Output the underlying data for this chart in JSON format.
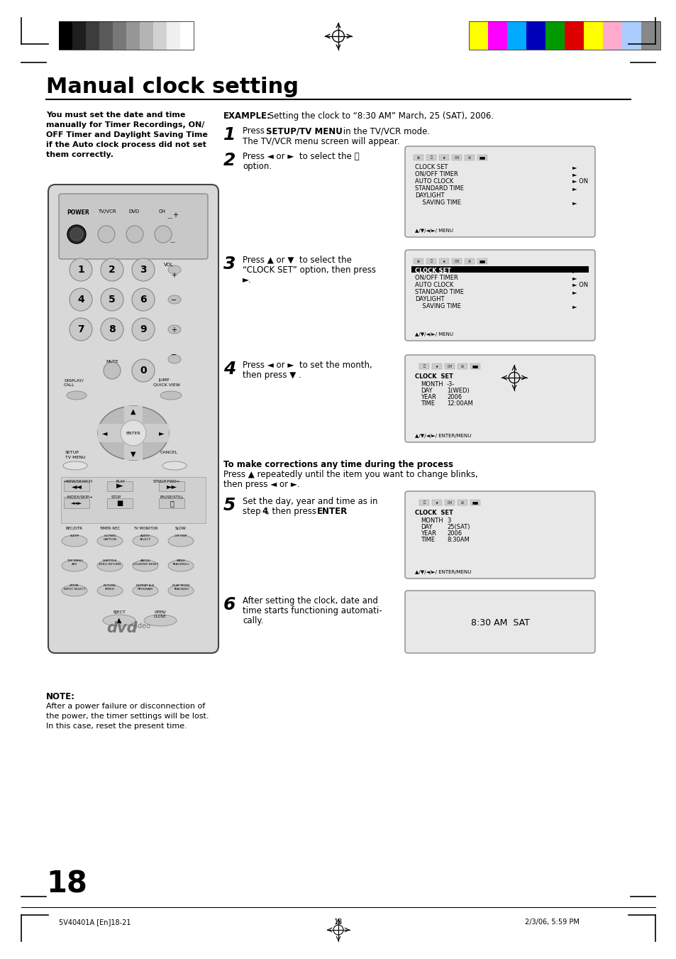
{
  "title": "Manual clock setting",
  "bg_color": "#ffffff",
  "left_col_text": [
    "You must set the date and time",
    "manually for Timer Recordings, ON/",
    "OFF Timer and Daylight Saving Time",
    "if the Auto clock process did not set",
    "them correctly."
  ],
  "note_title": "NOTE:",
  "note_text": [
    "After a power failure or disconnection of",
    "the power, the timer settings will be lost.",
    "In this case, reset the present time."
  ],
  "page_number": "18",
  "footer_left": "5V40401A [En]18-21",
  "footer_center": "18",
  "footer_right": "2/3/06, 5:59 PM",
  "dark_bar_colors": [
    "#000000",
    "#1e1e1e",
    "#3c3c3c",
    "#5a5a5a",
    "#787878",
    "#969696",
    "#b4b4b4",
    "#d2d2d2",
    "#f0f0f0",
    "#ffffff"
  ],
  "color_bar": [
    "#ffff00",
    "#ff00ff",
    "#00aaff",
    "#0000bb",
    "#009900",
    "#dd0000",
    "#ffff00",
    "#ffaacc",
    "#aaccff",
    "#888888"
  ]
}
